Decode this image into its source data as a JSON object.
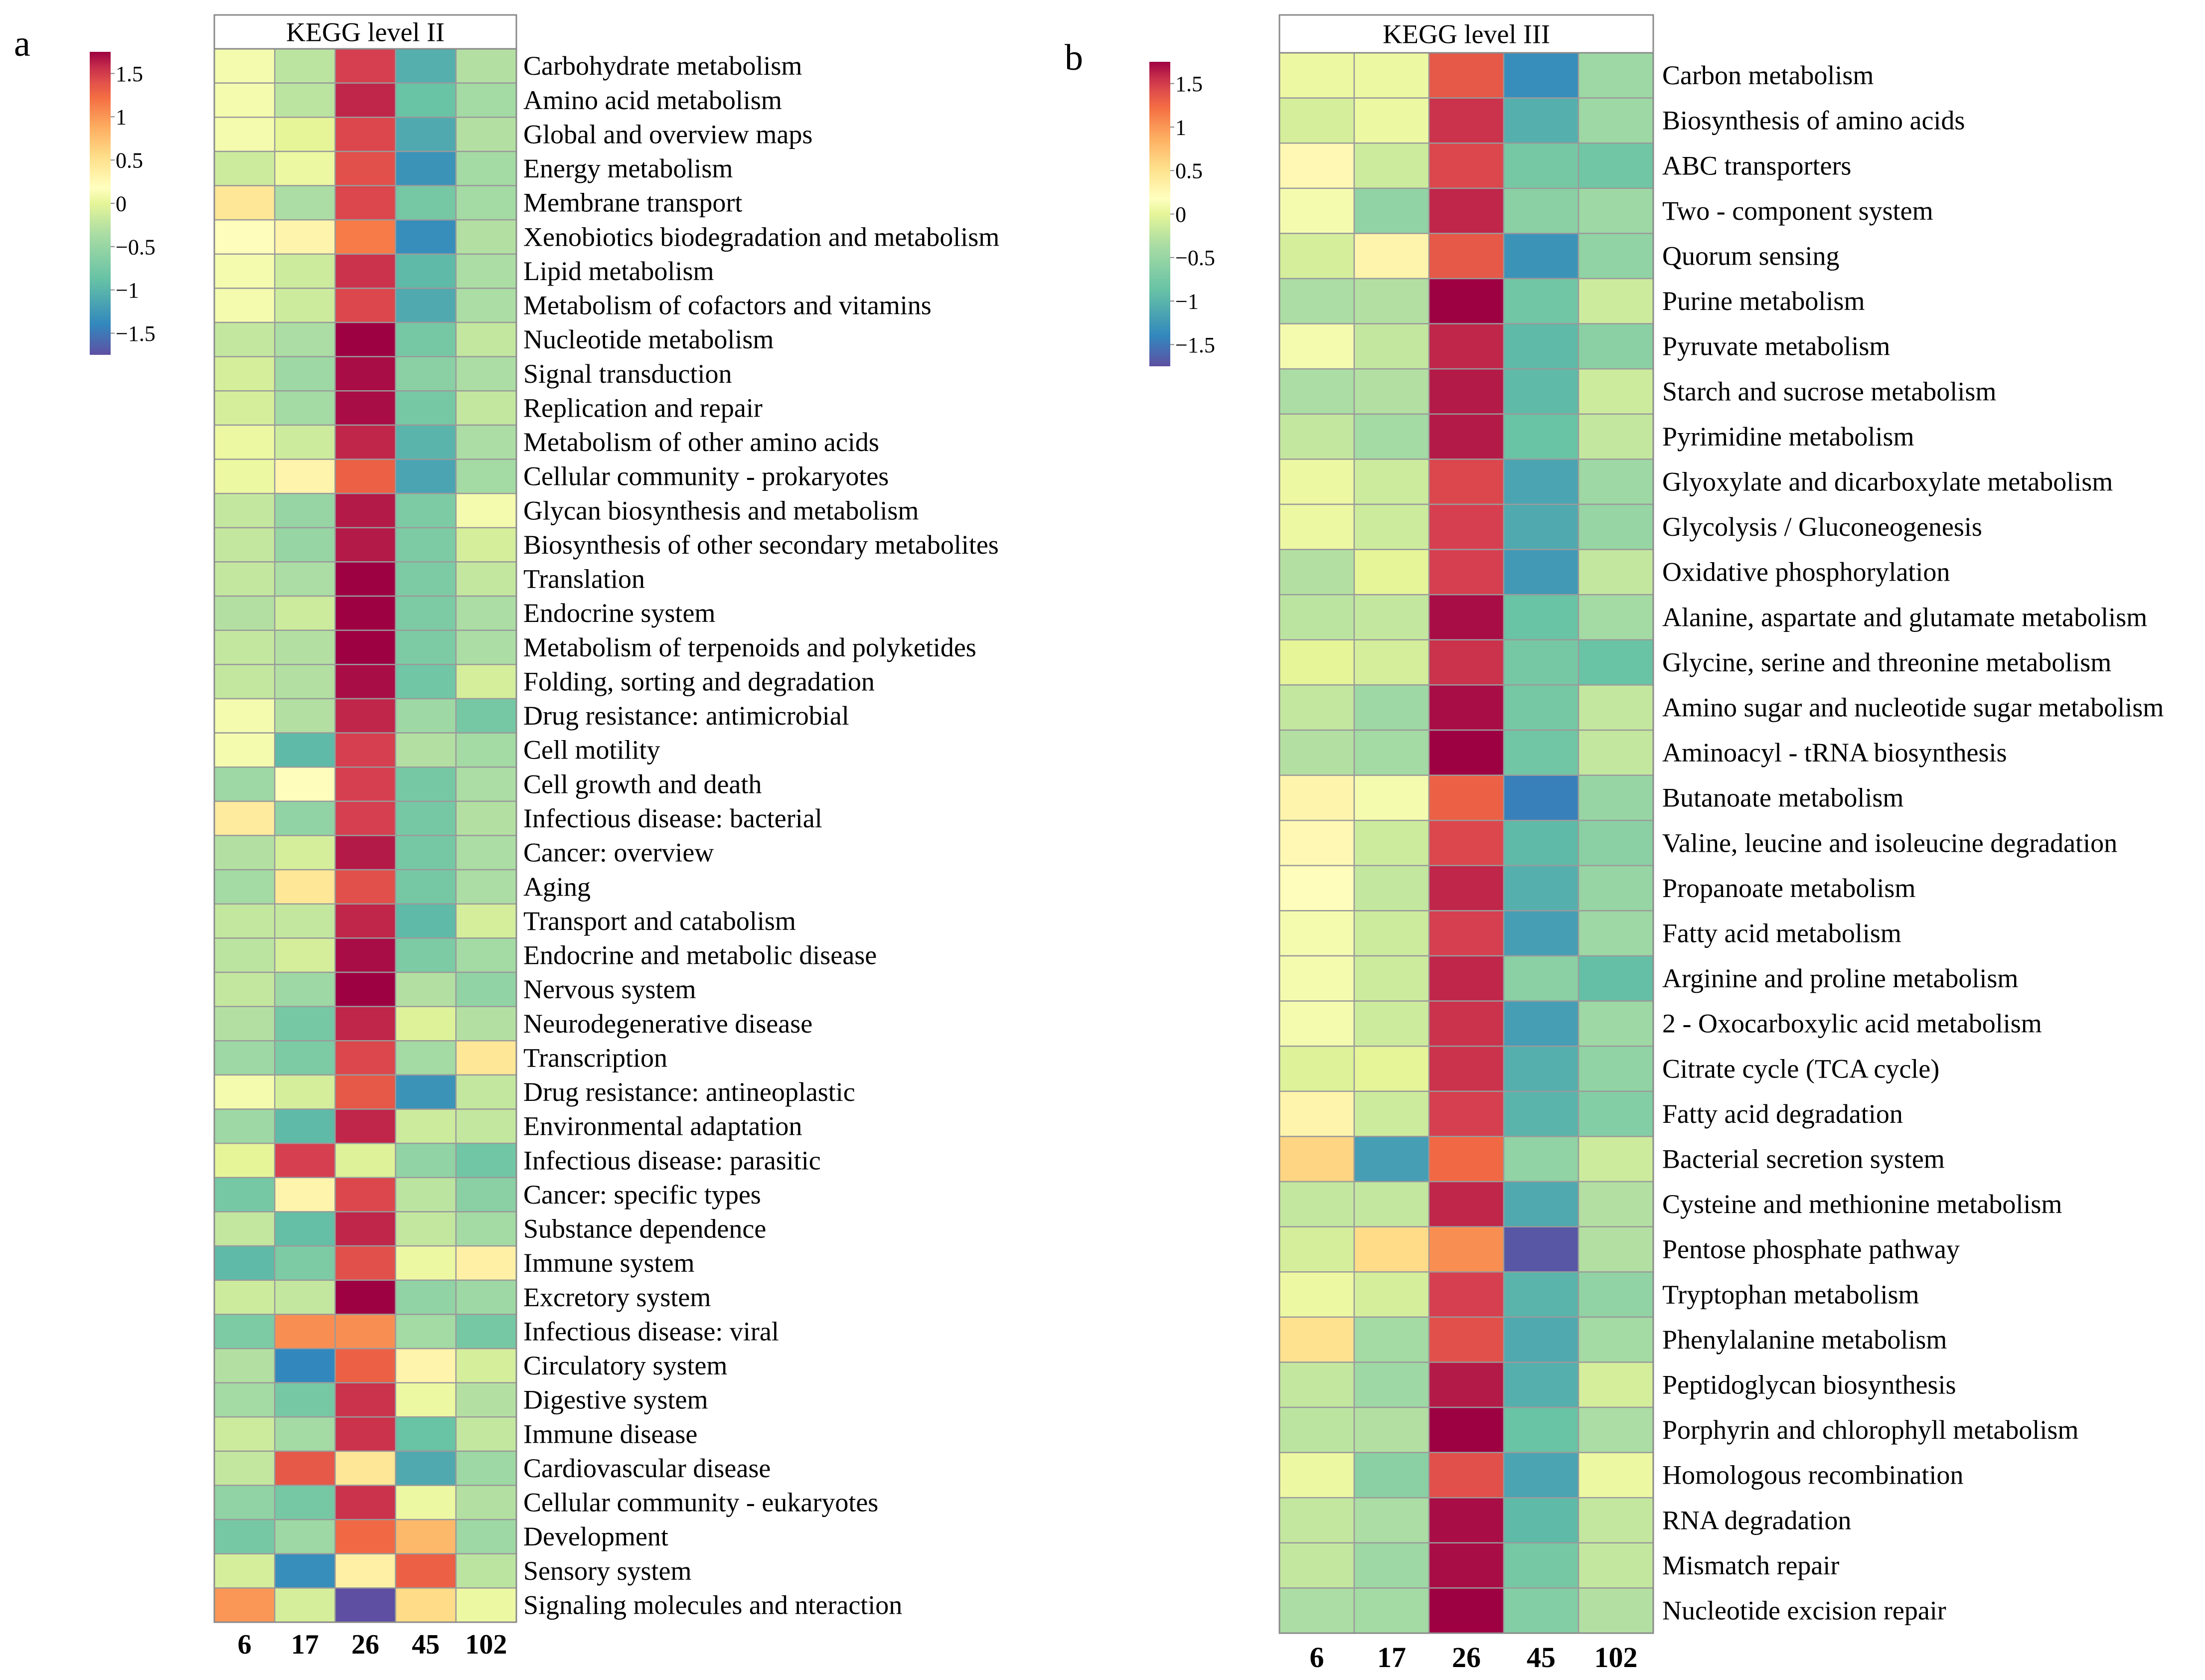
{
  "figure": {
    "panels": [
      {
        "letter": "a",
        "header": "KEGG level II",
        "legend_ticks": [
          "1.5",
          "1",
          "0.5",
          "0",
          "−0.5",
          "−1",
          "−1.5"
        ],
        "chart_data": {
          "type": "heatmap",
          "title": "KEGG level II",
          "columns": [
            "6",
            "17",
            "26",
            "45",
            "102"
          ],
          "value_range": [
            -1.75,
            1.75
          ],
          "rows": [
            {
              "label": "Carbohydrate metabolism",
              "values": [
                0.1,
                -0.25,
                1.5,
                -1.05,
                -0.3
              ]
            },
            {
              "label": "Amino acid metabolism",
              "values": [
                0.1,
                -0.25,
                1.6,
                -0.85,
                -0.4
              ]
            },
            {
              "label": "Global and overview maps",
              "values": [
                0.1,
                0.0,
                1.45,
                -1.1,
                -0.3
              ]
            },
            {
              "label": "Energy metabolism",
              "values": [
                -0.15,
                0.05,
                1.4,
                -1.3,
                -0.4
              ]
            },
            {
              "label": "Membrane transport",
              "values": [
                0.45,
                -0.35,
                1.45,
                -0.75,
                -0.4
              ]
            },
            {
              "label": "Xenobiotics biodegradation and metabolism",
              "values": [
                0.2,
                0.3,
                1.15,
                -1.35,
                -0.3
              ]
            },
            {
              "label": "Lipid metabolism",
              "values": [
                0.1,
                -0.15,
                1.55,
                -0.95,
                -0.35
              ]
            },
            {
              "label": "Metabolism of cofactors and vitamins",
              "values": [
                0.1,
                -0.15,
                1.45,
                -1.1,
                -0.35
              ]
            },
            {
              "label": "Nucleotide metabolism",
              "values": [
                -0.2,
                -0.35,
                1.75,
                -0.75,
                -0.2
              ]
            },
            {
              "label": "Signal transduction",
              "values": [
                -0.1,
                -0.45,
                1.7,
                -0.6,
                -0.35
              ]
            },
            {
              "label": "Replication and repair",
              "values": [
                -0.1,
                -0.4,
                1.7,
                -0.75,
                -0.2
              ]
            },
            {
              "label": "Metabolism of other amino acids",
              "values": [
                0.05,
                -0.15,
                1.6,
                -1.0,
                -0.35
              ]
            },
            {
              "label": "Cellular community - prokaryotes",
              "values": [
                0.05,
                0.3,
                1.3,
                -1.15,
                -0.4
              ]
            },
            {
              "label": "Glycan biosynthesis and metabolism",
              "values": [
                -0.2,
                -0.5,
                1.65,
                -0.7,
                0.1
              ]
            },
            {
              "label": "Biosynthesis of other secondary metabolites",
              "values": [
                -0.2,
                -0.5,
                1.65,
                -0.7,
                -0.1
              ]
            },
            {
              "label": "Translation",
              "values": [
                -0.2,
                -0.35,
                1.75,
                -0.7,
                -0.2
              ]
            },
            {
              "label": "Endocrine system",
              "values": [
                -0.3,
                -0.15,
                1.75,
                -0.7,
                -0.35
              ]
            },
            {
              "label": "Metabolism of terpenoids and polyketides",
              "values": [
                -0.2,
                -0.3,
                1.75,
                -0.7,
                -0.35
              ]
            },
            {
              "label": "Folding, sorting and degradation",
              "values": [
                -0.2,
                -0.3,
                1.7,
                -0.8,
                -0.1
              ]
            },
            {
              "label": "Drug resistance: antimicrobial",
              "values": [
                0.1,
                -0.3,
                1.6,
                -0.45,
                -0.75
              ]
            },
            {
              "label": "Cell motility",
              "values": [
                0.1,
                -0.95,
                1.5,
                -0.3,
                -0.4
              ]
            },
            {
              "label": "Cell growth and death",
              "values": [
                -0.45,
                0.2,
                1.5,
                -0.75,
                -0.35
              ]
            },
            {
              "label": "Infectious disease: bacterial",
              "values": [
                0.4,
                -0.55,
                1.5,
                -0.75,
                -0.3
              ]
            },
            {
              "label": "Cancer: overview",
              "values": [
                -0.3,
                -0.1,
                1.65,
                -0.75,
                -0.35
              ]
            },
            {
              "label": "Aging",
              "values": [
                -0.4,
                0.45,
                1.4,
                -0.75,
                -0.35
              ]
            },
            {
              "label": "Transport and catabolism",
              "values": [
                -0.2,
                -0.2,
                1.6,
                -0.95,
                -0.1
              ]
            },
            {
              "label": "Endocrine and metabolic disease",
              "values": [
                -0.25,
                -0.1,
                1.7,
                -0.7,
                -0.4
              ]
            },
            {
              "label": "Nervous system",
              "values": [
                -0.2,
                -0.45,
                1.75,
                -0.3,
                -0.55
              ]
            },
            {
              "label": "Neurodegenerative disease",
              "values": [
                -0.3,
                -0.75,
                1.6,
                -0.05,
                -0.3
              ]
            },
            {
              "label": "Transcription",
              "values": [
                -0.45,
                -0.7,
                1.45,
                -0.4,
                0.45
              ]
            },
            {
              "label": "Drug resistance: antineoplastic",
              "values": [
                0.1,
                -0.1,
                1.35,
                -1.3,
                -0.2
              ]
            },
            {
              "label": "Environmental adaptation",
              "values": [
                -0.45,
                -0.95,
                1.6,
                -0.15,
                -0.2
              ]
            },
            {
              "label": "Infectious disease: parasitic",
              "values": [
                0.0,
                1.5,
                -0.05,
                -0.55,
                -0.8
              ]
            },
            {
              "label": "Cancer: specific types",
              "values": [
                -0.75,
                0.3,
                1.45,
                -0.25,
                -0.6
              ]
            },
            {
              "label": "Substance dependence",
              "values": [
                -0.2,
                -0.9,
                1.6,
                -0.2,
                -0.4
              ]
            },
            {
              "label": "Immune system",
              "values": [
                -0.95,
                -0.7,
                1.4,
                0.05,
                0.35
              ]
            },
            {
              "label": "Excretory system",
              "values": [
                -0.15,
                -0.2,
                1.75,
                -0.55,
                -0.45
              ]
            },
            {
              "label": "Infectious disease: viral",
              "values": [
                -0.7,
                1.05,
                1.05,
                -0.4,
                -0.75
              ]
            },
            {
              "label": "Circulatory system",
              "values": [
                -0.3,
                -1.4,
                1.3,
                0.3,
                -0.1
              ]
            },
            {
              "label": "Digestive system",
              "values": [
                -0.4,
                -0.75,
                1.55,
                0.05,
                -0.3
              ]
            },
            {
              "label": "Immune disease",
              "values": [
                -0.15,
                -0.4,
                1.55,
                -0.85,
                -0.2
              ]
            },
            {
              "label": "Cardiovascular disease",
              "values": [
                -0.2,
                1.35,
                0.45,
                -1.1,
                -0.45
              ]
            },
            {
              "label": "Cellular community - eukaryotes",
              "values": [
                -0.55,
                -0.75,
                1.55,
                0.05,
                -0.3
              ]
            },
            {
              "label": "Development",
              "values": [
                -0.75,
                -0.45,
                1.25,
                0.8,
                -0.45
              ]
            },
            {
              "label": "Sensory system",
              "values": [
                -0.1,
                -1.35,
                0.35,
                1.3,
                -0.25
              ]
            },
            {
              "label": "Signaling molecules and nteraction",
              "values": [
                1.0,
                -0.1,
                -1.75,
                0.55,
                0.05
              ]
            }
          ]
        }
      },
      {
        "letter": "b",
        "header": "KEGG level III",
        "legend_ticks": [
          "1.5",
          "1",
          "0.5",
          "0",
          "−0.5",
          "−1",
          "−1.5"
        ],
        "chart_data": {
          "type": "heatmap",
          "title": "KEGG level III",
          "columns": [
            "6",
            "17",
            "26",
            "45",
            "102"
          ],
          "value_range": [
            -1.75,
            1.75
          ],
          "rows": [
            {
              "label": "Carbon metabolism",
              "values": [
                0.05,
                0.05,
                1.35,
                -1.35,
                -0.45
              ]
            },
            {
              "label": "Biosynthesis of amino acids",
              "values": [
                -0.1,
                0.05,
                1.55,
                -1.05,
                -0.45
              ]
            },
            {
              "label": "ABC transporters",
              "values": [
                0.25,
                -0.15,
                1.45,
                -0.75,
                -0.8
              ]
            },
            {
              "label": "Two - component system",
              "values": [
                0.1,
                -0.55,
                1.6,
                -0.6,
                -0.45
              ]
            },
            {
              "label": "Quorum sensing",
              "values": [
                -0.1,
                0.3,
                1.35,
                -1.3,
                -0.55
              ]
            },
            {
              "label": "Purine metabolism",
              "values": [
                -0.35,
                -0.3,
                1.75,
                -0.8,
                -0.15
              ]
            },
            {
              "label": "Pyruvate metabolism",
              "values": [
                0.1,
                -0.2,
                1.6,
                -0.95,
                -0.6
              ]
            },
            {
              "label": "Starch and sucrose metabolism",
              "values": [
                -0.35,
                -0.3,
                1.65,
                -0.95,
                -0.15
              ]
            },
            {
              "label": "Pyrimidine metabolism",
              "values": [
                -0.2,
                -0.4,
                1.65,
                -0.85,
                -0.2
              ]
            },
            {
              "label": "Glyoxylate and dicarboxylate metabolism",
              "values": [
                0.05,
                -0.15,
                1.45,
                -1.15,
                -0.45
              ]
            },
            {
              "label": "Glycolysis / Gluconeogenesis",
              "values": [
                0.05,
                -0.15,
                1.5,
                -1.1,
                -0.5
              ]
            },
            {
              "label": "Oxidative phosphorylation",
              "values": [
                -0.3,
                0.0,
                1.5,
                -1.25,
                -0.2
              ]
            },
            {
              "label": "Alanine, aspartate and glutamate metabolism",
              "values": [
                -0.25,
                -0.2,
                1.7,
                -0.85,
                -0.4
              ]
            },
            {
              "label": "Glycine, serine and threonine metabolism",
              "values": [
                0.0,
                -0.1,
                1.55,
                -0.75,
                -0.85
              ]
            },
            {
              "label": "Amino sugar and nucleotide sugar metabolism",
              "values": [
                -0.2,
                -0.45,
                1.7,
                -0.75,
                -0.2
              ]
            },
            {
              "label": "Aminoacyl - tRNA biosynthesis",
              "values": [
                -0.3,
                -0.4,
                1.75,
                -0.8,
                -0.2
              ]
            },
            {
              "label": "Butanoate metabolism",
              "values": [
                0.3,
                0.1,
                1.3,
                -1.45,
                -0.5
              ]
            },
            {
              "label": "Valine, leucine and isoleucine degradation",
              "values": [
                0.25,
                -0.15,
                1.45,
                -0.95,
                -0.6
              ]
            },
            {
              "label": "Propanoate metabolism",
              "values": [
                0.2,
                -0.2,
                1.6,
                -1.05,
                -0.5
              ]
            },
            {
              "label": "Fatty acid metabolism",
              "values": [
                0.1,
                -0.15,
                1.5,
                -1.2,
                -0.45
              ]
            },
            {
              "label": "Arginine and proline metabolism",
              "values": [
                0.1,
                -0.15,
                1.6,
                -0.6,
                -0.9
              ]
            },
            {
              "label": "2 - Oxocarboxylic acid metabolism",
              "values": [
                0.1,
                -0.15,
                1.55,
                -1.2,
                -0.45
              ]
            },
            {
              "label": "Citrate cycle (TCA cycle)",
              "values": [
                -0.05,
                0.0,
                1.55,
                -1.05,
                -0.55
              ]
            },
            {
              "label": "Fatty acid degradation",
              "values": [
                0.3,
                -0.15,
                1.5,
                -1.0,
                -0.65
              ]
            },
            {
              "label": "Bacterial secretion system",
              "values": [
                0.6,
                -1.2,
                1.25,
                -0.55,
                -0.15
              ]
            },
            {
              "label": "Cysteine and methionine metabolism",
              "values": [
                -0.2,
                -0.2,
                1.6,
                -1.1,
                -0.3
              ]
            },
            {
              "label": "Pentose phosphate pathway",
              "values": [
                -0.1,
                0.55,
                1.05,
                -1.7,
                -0.3
              ]
            },
            {
              "label": "Tryptophan metabolism",
              "values": [
                0.05,
                -0.1,
                1.5,
                -1.0,
                -0.55
              ]
            },
            {
              "label": "Phenylalanine metabolism",
              "values": [
                0.5,
                -0.4,
                1.4,
                -1.1,
                -0.4
              ]
            },
            {
              "label": "Peptidoglycan biosynthesis",
              "values": [
                -0.2,
                -0.45,
                1.65,
                -1.05,
                -0.1
              ]
            },
            {
              "label": "Porphyrin and chlorophyll metabolism",
              "values": [
                -0.25,
                -0.3,
                1.75,
                -0.85,
                -0.35
              ]
            },
            {
              "label": "Homologous recombination",
              "values": [
                0.05,
                -0.6,
                1.4,
                -1.15,
                0.05
              ]
            },
            {
              "label": "RNA degradation",
              "values": [
                -0.2,
                -0.35,
                1.7,
                -0.95,
                -0.2
              ]
            },
            {
              "label": "Mismatch repair",
              "values": [
                -0.2,
                -0.45,
                1.7,
                -0.75,
                -0.2
              ]
            },
            {
              "label": "Nucleotide excision repair",
              "values": [
                -0.35,
                -0.4,
                1.75,
                -0.65,
                -0.3
              ]
            }
          ]
        }
      }
    ]
  }
}
